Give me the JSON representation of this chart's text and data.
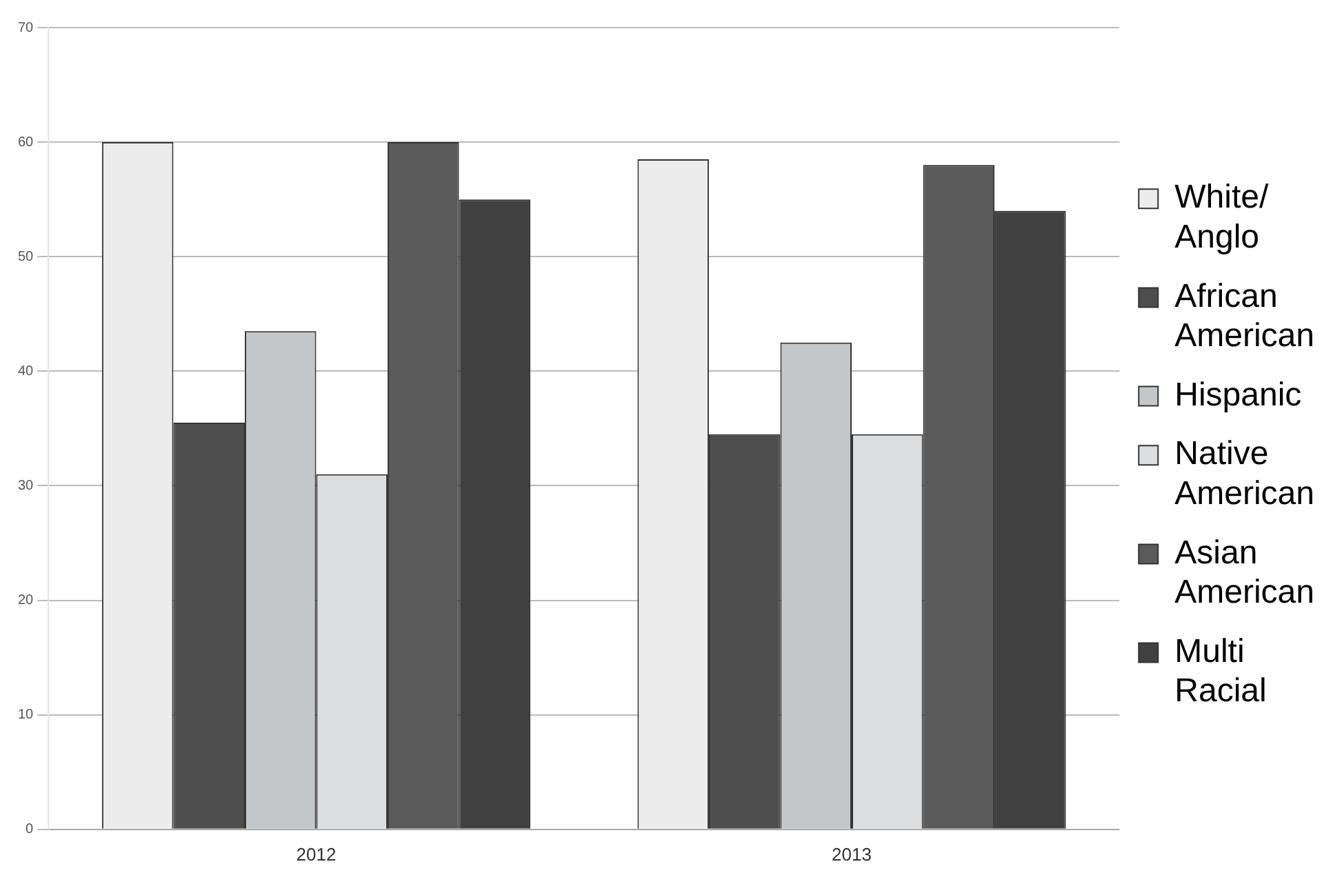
{
  "chart_data": {
    "type": "bar",
    "categories": [
      "2012",
      "2013"
    ],
    "series": [
      {
        "name": "White/ Anglo",
        "color": "#ececec",
        "values": [
          60,
          58.5
        ]
      },
      {
        "name": "African American",
        "color": "#4d4d4d",
        "values": [
          35.5,
          34.5
        ]
      },
      {
        "name": "Hispanic",
        "color": "#c4c7c9",
        "values": [
          43.5,
          42.5
        ]
      },
      {
        "name": "Native American",
        "color": "#dcdedf",
        "values": [
          31,
          34.5
        ]
      },
      {
        "name": "Asian American",
        "color": "#5a5a5a",
        "values": [
          60,
          58
        ]
      },
      {
        "name": "Multi Racial",
        "color": "#404040",
        "values": [
          55,
          54
        ]
      }
    ],
    "ylim": [
      0,
      70
    ],
    "yticks": [
      0,
      10,
      20,
      30,
      40,
      50,
      60,
      70
    ],
    "grid": "y",
    "legend": "right"
  }
}
